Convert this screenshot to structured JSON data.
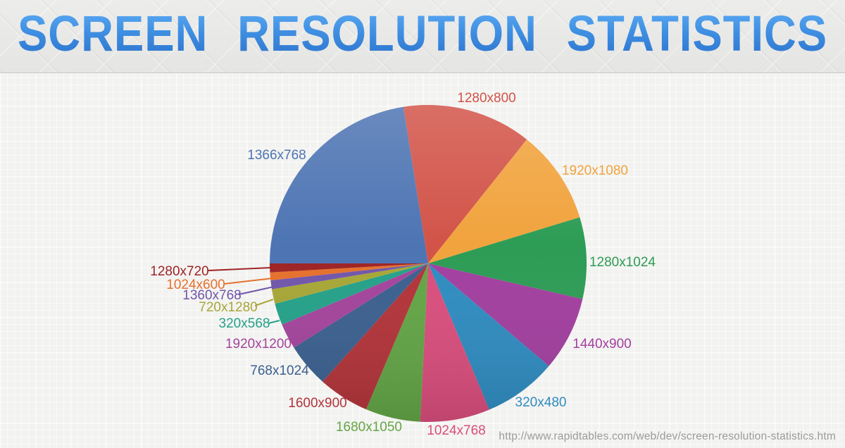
{
  "header": {
    "title": "SCREEN RESOLUTION STATISTICS",
    "title_color_top": "#5caaf3",
    "title_color_bottom": "#2d74ce",
    "background_color": "#e9e9e7"
  },
  "canvas": {
    "background_color": "#f2f2f0"
  },
  "footer": {
    "source_url": "http://www.rapidtables.com/web/dev/screen-resolution-statistics.htm",
    "text_color": "#9b9b9b"
  },
  "chart_data": {
    "type": "pie",
    "title": "Screen resolution statistics",
    "legend_position": "outside-labels-with-leader-lines-for-small-slices",
    "direction": "clockwise",
    "start_angle_deg": 99,
    "values_unit": "percent share, estimated from slice angles",
    "slices": [
      {
        "label": "1280x800",
        "value": 13.2,
        "color": "#d25348"
      },
      {
        "label": "1920x1080",
        "value": 9.6,
        "color": "#f1a33d"
      },
      {
        "label": "1280x1024",
        "value": 8.3,
        "color": "#2d9c55"
      },
      {
        "label": "1440x900",
        "value": 7.6,
        "color": "#a23f9f"
      },
      {
        "label": "320x480",
        "value": 7.5,
        "color": "#2f8cc0"
      },
      {
        "label": "1024x768",
        "value": 7.1,
        "color": "#d94e7d"
      },
      {
        "label": "1680x1050",
        "value": 5.6,
        "color": "#63a546"
      },
      {
        "label": "1600x900",
        "value": 5.2,
        "color": "#b2343a"
      },
      {
        "label": "768x1024",
        "value": 4.5,
        "color": "#3b608f"
      },
      {
        "label": "1920x1200",
        "value": 2.6,
        "color": "#a4449c"
      },
      {
        "label": "320x568",
        "value": 2.2,
        "color": "#25a189"
      },
      {
        "label": "720x1280",
        "value": 1.5,
        "color": "#a6a637"
      },
      {
        "label": "1360x768",
        "value": 0.9,
        "color": "#7156aa"
      },
      {
        "label": "1024x600",
        "value": 0.8,
        "color": "#e5702c"
      },
      {
        "label": "1280x720",
        "value": 0.9,
        "color": "#9e2425"
      },
      {
        "label": "1366x768",
        "value": 22.5,
        "color": "#4d74b3"
      }
    ]
  }
}
